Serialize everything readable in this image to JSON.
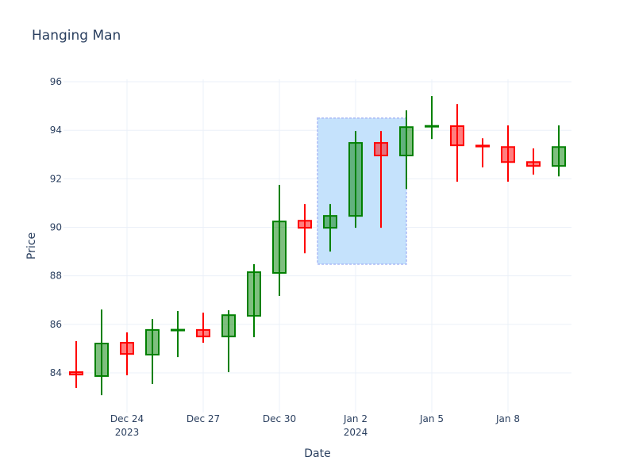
{
  "chart_data": {
    "type": "candlestick",
    "title": "Hanging Man",
    "xlabel": "Date",
    "ylabel": "Price",
    "ylim": [
      82.7,
      96.2
    ],
    "yticks": [
      84,
      86,
      88,
      90,
      92,
      94,
      96
    ],
    "xticks": [
      {
        "date": "2023-12-24",
        "label": "Dec 24",
        "sub": "2023"
      },
      {
        "date": "2023-12-27",
        "label": "Dec 27",
        "sub": ""
      },
      {
        "date": "2023-12-30",
        "label": "Dec 30",
        "sub": ""
      },
      {
        "date": "2024-01-02",
        "label": "Jan 2",
        "sub": "2024"
      },
      {
        "date": "2024-01-05",
        "label": "Jan 5",
        "sub": ""
      },
      {
        "date": "2024-01-08",
        "label": "Jan 8",
        "sub": ""
      }
    ],
    "grid": true,
    "increasing_color": "#008000",
    "decreasing_color": "#ff0000",
    "candles": [
      {
        "date": "2023-12-22",
        "open": 84.03,
        "high": 85.31,
        "low": 83.38,
        "close": 83.93
      },
      {
        "date": "2023-12-23",
        "open": 83.87,
        "high": 86.61,
        "low": 83.08,
        "close": 85.21
      },
      {
        "date": "2023-12-24",
        "open": 85.24,
        "high": 85.67,
        "low": 83.9,
        "close": 84.78
      },
      {
        "date": "2023-12-25",
        "open": 84.75,
        "high": 86.22,
        "low": 83.54,
        "close": 85.77
      },
      {
        "date": "2023-12-26",
        "open": 85.76,
        "high": 86.55,
        "low": 84.65,
        "close": 85.78
      },
      {
        "date": "2023-12-27",
        "open": 85.77,
        "high": 86.48,
        "low": 85.24,
        "close": 85.5
      },
      {
        "date": "2023-12-28",
        "open": 85.5,
        "high": 86.58,
        "low": 84.03,
        "close": 86.38
      },
      {
        "date": "2023-12-29",
        "open": 86.35,
        "high": 88.48,
        "low": 85.47,
        "close": 88.15
      },
      {
        "date": "2023-12-30",
        "open": 88.12,
        "high": 91.75,
        "low": 87.17,
        "close": 90.24
      },
      {
        "date": "2023-12-31",
        "open": 90.27,
        "high": 90.96,
        "low": 88.93,
        "close": 89.98
      },
      {
        "date": "2024-01-01",
        "open": 89.98,
        "high": 90.96,
        "low": 89.0,
        "close": 90.47
      },
      {
        "date": "2024-01-02",
        "open": 90.47,
        "high": 93.97,
        "low": 89.98,
        "close": 93.48
      },
      {
        "date": "2024-01-03",
        "open": 93.48,
        "high": 93.97,
        "low": 89.98,
        "close": 92.96
      },
      {
        "date": "2024-01-04",
        "open": 92.96,
        "high": 94.82,
        "low": 91.58,
        "close": 94.13
      },
      {
        "date": "2024-01-05",
        "open": 94.16,
        "high": 95.41,
        "low": 93.64,
        "close": 94.18
      },
      {
        "date": "2024-01-06",
        "open": 94.17,
        "high": 95.08,
        "low": 91.88,
        "close": 93.38
      },
      {
        "date": "2024-01-07",
        "open": 93.37,
        "high": 93.67,
        "low": 92.47,
        "close": 93.33
      },
      {
        "date": "2024-01-08",
        "open": 93.31,
        "high": 94.2,
        "low": 91.88,
        "close": 92.69
      },
      {
        "date": "2024-01-09",
        "open": 92.69,
        "high": 93.25,
        "low": 92.17,
        "close": 92.53
      },
      {
        "date": "2024-01-10",
        "open": 92.53,
        "high": 94.2,
        "low": 92.1,
        "close": 93.31
      }
    ],
    "highlight": {
      "x0": "2023-12-31T12:00",
      "x1": "2024-01-04",
      "y0": 88.48,
      "y1": 94.5,
      "fill": "#c5e2fc",
      "border": "#a9b9f5"
    }
  }
}
